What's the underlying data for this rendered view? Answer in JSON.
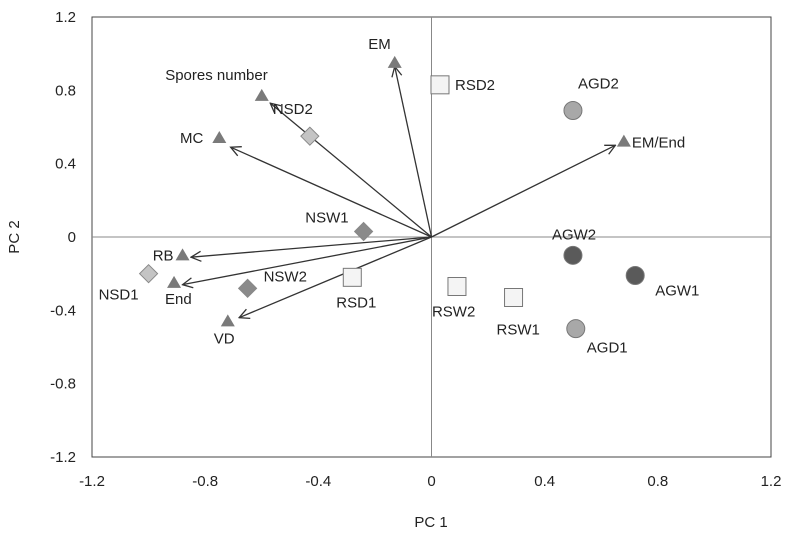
{
  "chart_data": {
    "type": "scatter",
    "title": "",
    "xlabel": "PC 1",
    "ylabel": "PC 2",
    "xlim": [
      -1.2,
      1.2
    ],
    "ylim": [
      -1.2,
      1.2
    ],
    "xticks": [
      -1.2,
      -0.8,
      -0.4,
      0,
      0.4,
      0.8,
      1.2
    ],
    "yticks": [
      -1.2,
      -0.8,
      -0.4,
      0,
      0.4,
      0.8,
      1.2
    ],
    "grid": false,
    "colors": {
      "triangle": "#7a7a7a",
      "diamond_light": "#c4c4c4",
      "diamond_dark": "#8a8a8a",
      "square": "#f4f4f4",
      "circle_light": "#a8a8a8",
      "circle_dark": "#5a5a5a",
      "arrow": "#333333"
    },
    "series": [
      {
        "marker": "triangle",
        "points": [
          {
            "label": "EM",
            "x": -0.13,
            "y": 0.95
          },
          {
            "label": "Spores number",
            "x": -0.6,
            "y": 0.77
          },
          {
            "label": "MC",
            "x": -0.75,
            "y": 0.54
          },
          {
            "label": "EM/End",
            "x": 0.68,
            "y": 0.52
          },
          {
            "label": "RB",
            "x": -0.88,
            "y": -0.1
          },
          {
            "label": "End",
            "x": -0.91,
            "y": -0.25
          },
          {
            "label": "VD",
            "x": -0.72,
            "y": -0.46
          }
        ]
      },
      {
        "marker": "diamond",
        "points": [
          {
            "label": "NSD2",
            "x": -0.43,
            "y": 0.55,
            "shade": "light"
          },
          {
            "label": "NSW1",
            "x": -0.24,
            "y": 0.03,
            "shade": "dark"
          },
          {
            "label": "NSD1",
            "x": -1.0,
            "y": -0.2,
            "shade": "light"
          },
          {
            "label": "NSW2",
            "x": -0.65,
            "y": -0.28,
            "shade": "dark"
          }
        ]
      },
      {
        "marker": "square",
        "points": [
          {
            "label": "RSD2",
            "x": 0.03,
            "y": 0.83
          },
          {
            "label": "RSD1",
            "x": -0.28,
            "y": -0.22
          },
          {
            "label": "RSW2",
            "x": 0.09,
            "y": -0.27
          },
          {
            "label": "RSW1",
            "x": 0.29,
            "y": -0.33
          }
        ]
      },
      {
        "marker": "circle",
        "points": [
          {
            "label": "AGD2",
            "x": 0.5,
            "y": 0.69,
            "shade": "light"
          },
          {
            "label": "AGW2",
            "x": 0.5,
            "y": -0.1,
            "shade": "dark"
          },
          {
            "label": "AGW1",
            "x": 0.72,
            "y": -0.21,
            "shade": "dark"
          },
          {
            "label": "AGD1",
            "x": 0.51,
            "y": -0.5,
            "shade": "light"
          }
        ]
      }
    ],
    "vectors": [
      {
        "to": "EM",
        "x": -0.13,
        "y": 0.93
      },
      {
        "to": "Spores number",
        "x": -0.57,
        "y": 0.73
      },
      {
        "to": "MC",
        "x": -0.71,
        "y": 0.49
      },
      {
        "to": "EM/End",
        "x": 0.65,
        "y": 0.5
      },
      {
        "to": "RB",
        "x": -0.85,
        "y": -0.11
      },
      {
        "to": "End",
        "x": -0.88,
        "y": -0.26
      },
      {
        "to": "VD",
        "x": -0.68,
        "y": -0.44
      }
    ]
  }
}
